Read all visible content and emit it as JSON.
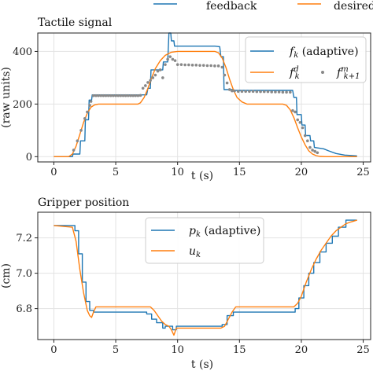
{
  "top_legend": {
    "items": [
      {
        "label": "feedback",
        "color": "#1f77b4"
      },
      {
        "label": "desired",
        "color": "#ff7f0e"
      }
    ]
  },
  "chart_data": [
    {
      "type": "line",
      "title": "Tactile signal",
      "xlabel": "t (s)",
      "ylabel": "(raw units)",
      "xlim": [
        -1.3,
        25.6
      ],
      "ylim": [
        -20,
        470
      ],
      "xticks": [
        0,
        5,
        10,
        15,
        20,
        25
      ],
      "yticks": [
        0,
        200,
        400
      ],
      "grid": true,
      "legend_position": "upper-right",
      "legend": [
        {
          "symbol": "f",
          "subscript": "k",
          "suffix": " (adaptive)",
          "kind": "line",
          "color": "#1f77b4"
        },
        {
          "symbol": "f",
          "subscript": "k",
          "superscript": "d",
          "kind": "line",
          "color": "#ff7f0e"
        },
        {
          "symbol": "f",
          "subscript": "k+1",
          "superscript": "m",
          "kind": "marker",
          "color": "#888888"
        }
      ],
      "series": [
        {
          "name": "f_k (adaptive)",
          "color": "#1f77b4",
          "x": [
            0,
            1.5,
            1.55,
            2.1,
            2.15,
            2.5,
            2.55,
            2.8,
            2.85,
            3.05,
            3.1,
            3.5,
            7.5,
            7.6,
            7.8,
            7.85,
            8.8,
            8.85,
            9.2,
            9.3,
            9.45,
            9.5,
            9.7,
            9.75,
            13.0,
            13.4,
            13.5,
            13.7,
            13.75,
            14.5,
            14.6,
            19.3,
            19.4,
            19.6,
            19.65,
            20.0,
            20.05,
            20.3,
            20.35,
            20.7,
            20.75,
            21.0,
            21.05,
            21.8,
            22.2,
            22.8,
            23.5,
            24.5
          ],
          "y": [
            0,
            0,
            10,
            10,
            60,
            60,
            140,
            140,
            215,
            215,
            235,
            235,
            235,
            260,
            260,
            330,
            330,
            360,
            360,
            470,
            470,
            440,
            440,
            420,
            420,
            418,
            380,
            380,
            255,
            255,
            252,
            252,
            225,
            225,
            160,
            160,
            120,
            120,
            80,
            80,
            60,
            60,
            35,
            30,
            22,
            12,
            6,
            3
          ]
        },
        {
          "name": "f_k^d",
          "color": "#ff7f0e",
          "x": [
            0,
            1.2,
            1.5,
            1.8,
            2.1,
            2.4,
            2.7,
            3.0,
            3.3,
            3.6,
            4.0,
            4.5,
            6.8,
            7.0,
            7.3,
            7.6,
            7.9,
            8.2,
            8.6,
            9.0,
            9.5,
            10.0,
            13.0,
            13.3,
            13.6,
            13.9,
            14.2,
            14.5,
            14.8,
            15.2,
            15.6,
            18.5,
            18.8,
            19.1,
            19.4,
            19.7,
            20.0,
            20.3,
            20.6,
            20.9,
            21.2,
            21.5,
            22.0,
            22.5,
            24.5
          ],
          "y": [
            0,
            0,
            10,
            40,
            85,
            130,
            165,
            188,
            197,
            200,
            200,
            200,
            200,
            205,
            225,
            260,
            300,
            335,
            365,
            385,
            397,
            400,
            400,
            395,
            375,
            340,
            295,
            255,
            225,
            208,
            200,
            200,
            195,
            178,
            148,
            110,
            75,
            45,
            22,
            10,
            4,
            1,
            0,
            0,
            0
          ]
        },
        {
          "name": "f_{k+1}^m",
          "color": "#888888",
          "marker": "dot",
          "x": [
            1.6,
            1.9,
            2.2,
            2.5,
            2.7,
            2.9,
            3.0,
            3.2,
            3.4,
            3.6,
            3.8,
            4.0,
            4.2,
            4.4,
            4.6,
            4.8,
            5.0,
            5.2,
            5.4,
            5.6,
            5.8,
            6.0,
            6.2,
            6.4,
            6.6,
            6.8,
            7.0,
            7.2,
            7.4,
            7.6,
            7.8,
            8.0,
            8.2,
            8.4,
            8.6,
            8.8,
            9.0,
            9.2,
            9.4,
            9.6,
            9.8,
            10.0,
            10.3,
            10.6,
            10.9,
            11.2,
            11.5,
            11.8,
            12.1,
            12.4,
            12.7,
            13.0,
            13.3,
            13.6,
            13.8,
            14.0,
            14.2,
            14.4,
            14.6,
            14.9,
            15.2,
            15.5,
            15.8,
            16.1,
            16.4,
            16.7,
            17.0,
            17.3,
            17.6,
            17.9,
            18.2,
            18.5,
            18.8,
            19.1,
            19.3,
            19.5,
            19.7,
            19.9,
            20.1,
            20.3,
            20.5,
            20.7,
            20.9,
            21.1,
            21.3
          ],
          "y": [
            25,
            60,
            100,
            145,
            170,
            195,
            210,
            232,
            232,
            232,
            232,
            232,
            232,
            232,
            232,
            232,
            232,
            232,
            232,
            232,
            232,
            232,
            232,
            232,
            232,
            232,
            233,
            260,
            270,
            282,
            290,
            300,
            310,
            325,
            330,
            300,
            350,
            370,
            380,
            370,
            365,
            350,
            350,
            349,
            349,
            348,
            348,
            347,
            347,
            346,
            346,
            345,
            345,
            340,
            310,
            280,
            255,
            250,
            250,
            248,
            248,
            248,
            248,
            248,
            247,
            247,
            247,
            247,
            246,
            246,
            246,
            245,
            245,
            245,
            175,
            170,
            140,
            130,
            110,
            80,
            60,
            35,
            25,
            20,
            15
          ]
        }
      ]
    },
    {
      "type": "line",
      "title": "Gripper position",
      "xlabel": "t (s)",
      "ylabel": "(cm)",
      "xlim": [
        -1.3,
        25.6
      ],
      "ylim": [
        6.625,
        7.345
      ],
      "xticks": [
        0,
        5,
        10,
        15,
        20,
        25
      ],
      "yticks": [
        6.8,
        7.0,
        7.2
      ],
      "ytick_labels": [
        "6.8",
        "7.0",
        "7.2"
      ],
      "grid": true,
      "legend_position": "upper-center",
      "legend": [
        {
          "symbol": "p",
          "subscript": "k",
          "suffix": " (adaptive)",
          "kind": "line",
          "color": "#1f77b4"
        },
        {
          "symbol": "u",
          "subscript": "k",
          "kind": "line",
          "color": "#ff7f0e"
        }
      ],
      "series": [
        {
          "name": "p_k (adaptive)",
          "color": "#1f77b4",
          "x": [
            0,
            1.7,
            1.7,
            2.0,
            2.0,
            2.3,
            2.3,
            2.6,
            2.6,
            2.9,
            2.9,
            3.2,
            3.2,
            7.5,
            7.5,
            7.9,
            7.9,
            8.3,
            8.3,
            8.8,
            8.8,
            9.0,
            9.0,
            9.6,
            9.6,
            9.9,
            9.9,
            13.6,
            13.6,
            14.0,
            14.0,
            14.5,
            14.5,
            19.5,
            19.5,
            19.8,
            19.8,
            20.2,
            20.2,
            20.6,
            20.6,
            21.0,
            21.0,
            21.5,
            21.5,
            22.0,
            22.0,
            22.5,
            22.5,
            23.0,
            23.0,
            23.6,
            23.6,
            24.5
          ],
          "y": [
            7.27,
            7.27,
            7.24,
            7.24,
            7.11,
            7.11,
            6.95,
            6.95,
            6.84,
            6.84,
            6.79,
            6.79,
            6.78,
            6.78,
            6.77,
            6.77,
            6.74,
            6.74,
            6.72,
            6.72,
            6.69,
            6.69,
            6.7,
            6.7,
            6.68,
            6.68,
            6.7,
            6.7,
            6.71,
            6.71,
            6.76,
            6.76,
            6.78,
            6.78,
            6.8,
            6.8,
            6.86,
            6.86,
            6.93,
            6.93,
            7.0,
            7.0,
            7.06,
            7.06,
            7.12,
            7.12,
            7.17,
            7.17,
            7.21,
            7.21,
            7.26,
            7.26,
            7.3,
            7.3
          ]
        },
        {
          "name": "u_k",
          "color": "#ff7f0e",
          "x": [
            0,
            1.5,
            1.8,
            2.1,
            2.4,
            2.7,
            2.9,
            3.05,
            3.2,
            3.4,
            7.5,
            7.8,
            8.1,
            8.4,
            8.7,
            9.0,
            9.3,
            9.5,
            9.7,
            9.9,
            10.2,
            13.5,
            13.8,
            14.1,
            14.4,
            14.7,
            19.4,
            19.7,
            20.0,
            20.4,
            20.8,
            21.2,
            21.6,
            22.0,
            22.4,
            22.8,
            23.2,
            23.6,
            24.0,
            24.5
          ],
          "y": [
            7.27,
            7.26,
            7.18,
            7.02,
            6.89,
            6.79,
            6.76,
            6.75,
            6.78,
            6.81,
            6.81,
            6.81,
            6.79,
            6.76,
            6.73,
            6.71,
            6.7,
            6.68,
            6.65,
            6.69,
            6.69,
            6.69,
            6.7,
            6.74,
            6.78,
            6.81,
            6.81,
            6.83,
            6.87,
            6.95,
            7.02,
            7.08,
            7.13,
            7.17,
            7.21,
            7.24,
            7.26,
            7.28,
            7.29,
            7.3
          ]
        }
      ]
    }
  ]
}
